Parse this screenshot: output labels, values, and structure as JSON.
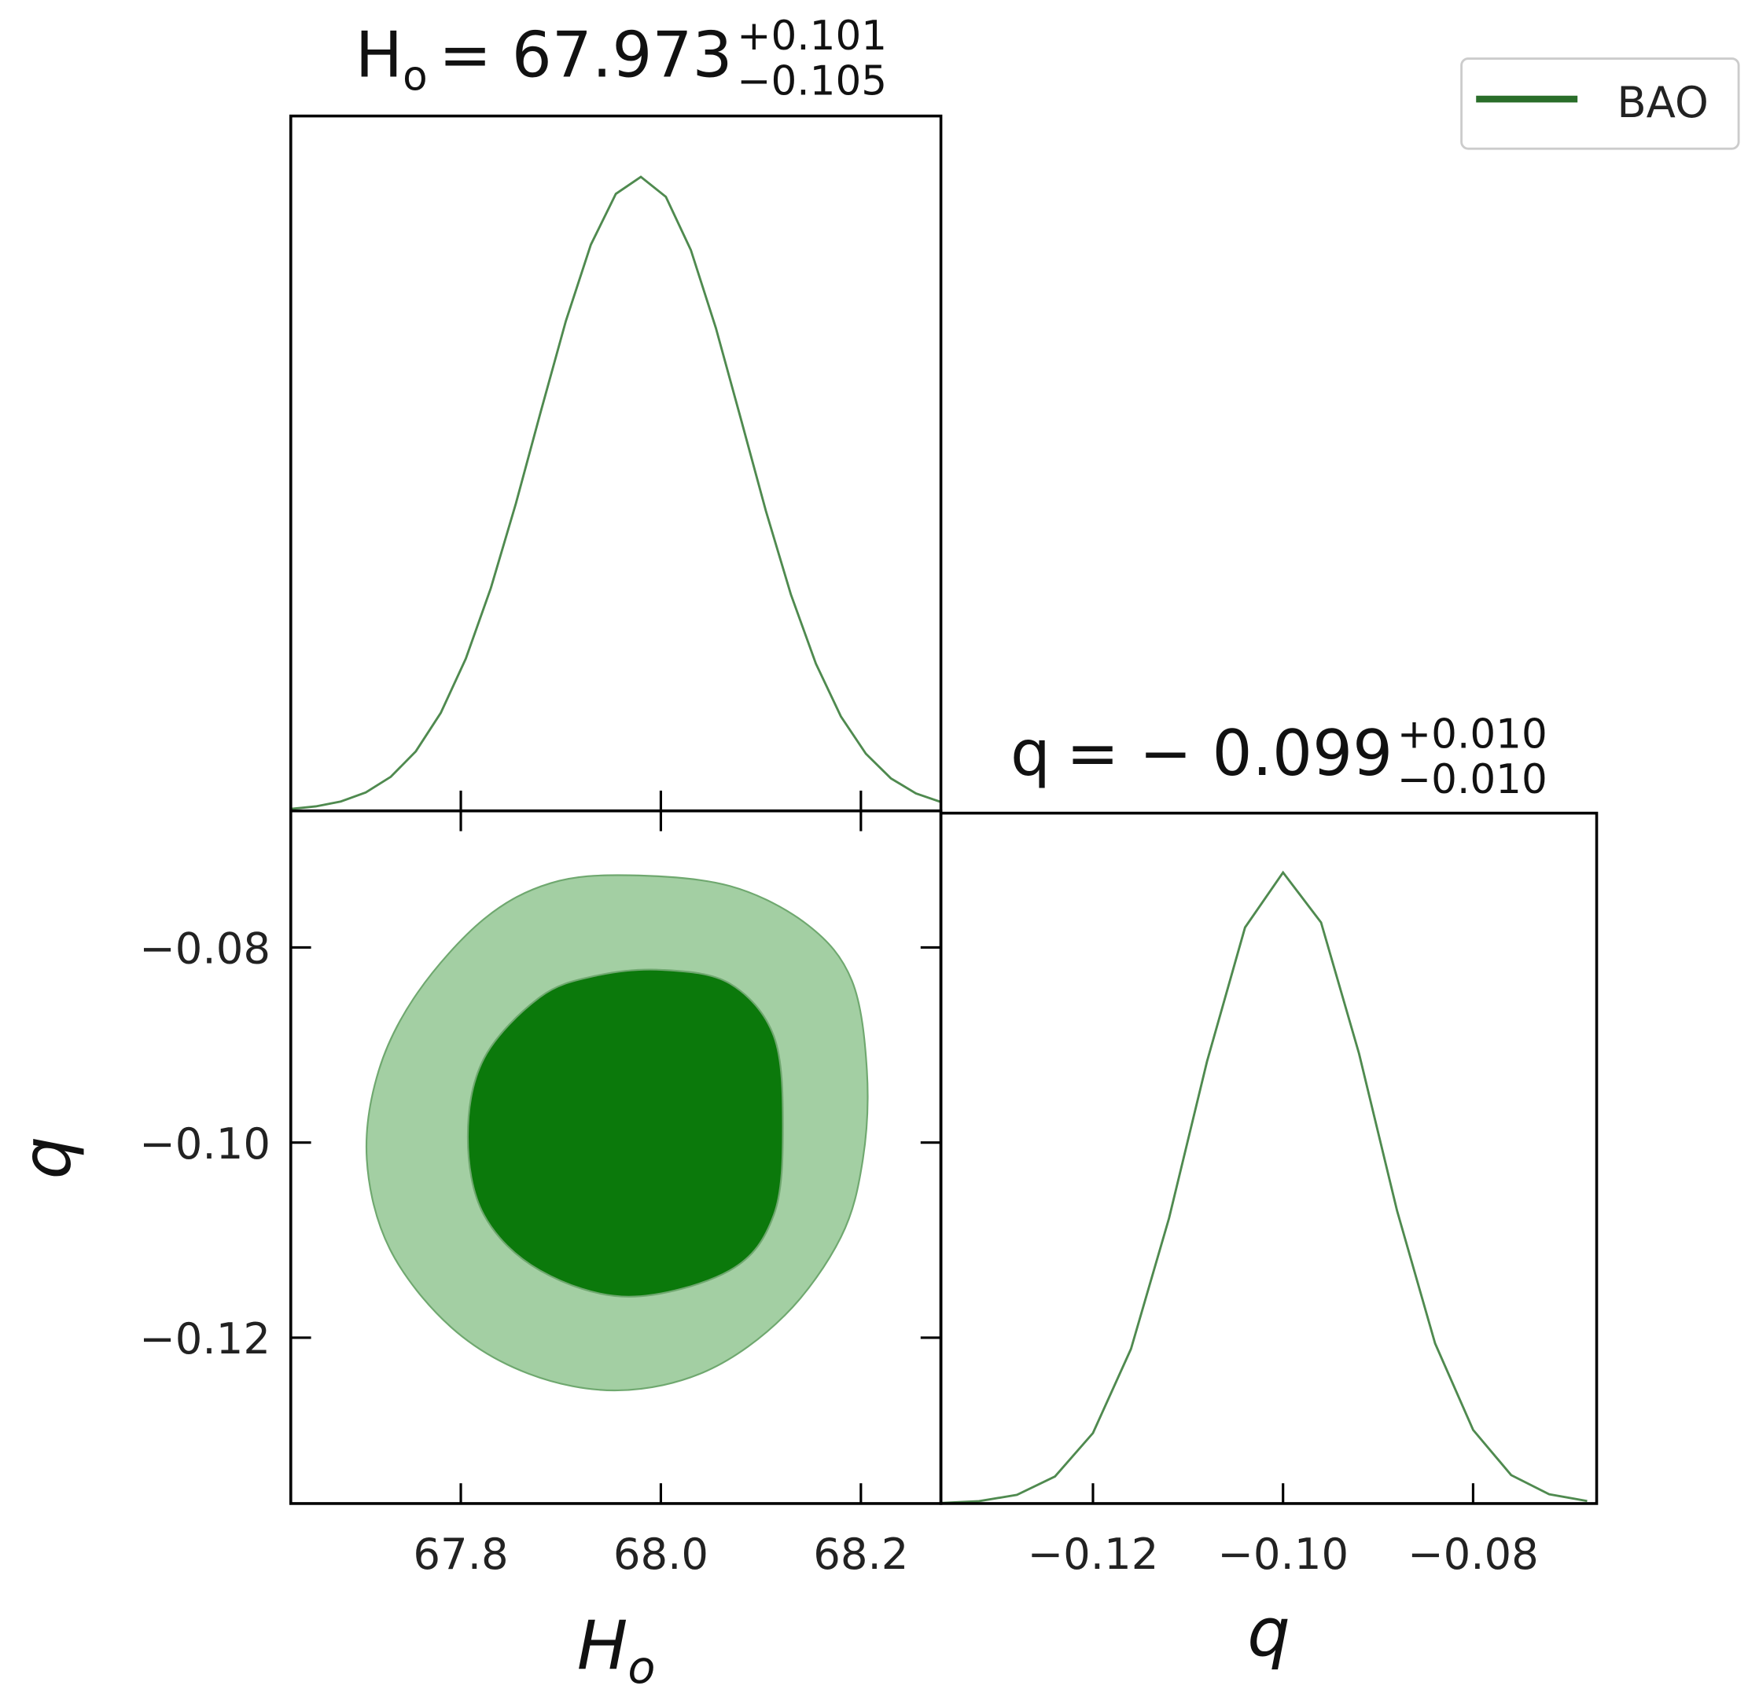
{
  "chart_data": [
    {
      "type": "line",
      "title": {
        "main": "H",
        "main_sub": "o",
        "value": "= 67.973",
        "upper": "+0.101",
        "lower": "−0.105"
      },
      "x": [
        67.63,
        67.655,
        67.68,
        67.705,
        67.73,
        67.755,
        67.78,
        67.805,
        67.83,
        67.855,
        67.88,
        67.905,
        67.93,
        67.955,
        67.98,
        68.005,
        68.03,
        68.055,
        68.08,
        68.105,
        68.13,
        68.155,
        68.18,
        68.205,
        68.23,
        68.255,
        68.28
      ],
      "series": [
        {
          "name": "BAO",
          "color": "#4f8a4f",
          "values": [
            0.0032,
            0.0071,
            0.0148,
            0.0291,
            0.0538,
            0.0939,
            0.1547,
            0.2401,
            0.3513,
            0.4845,
            0.6301,
            0.7725,
            0.893,
            0.9732,
            1.0,
            0.9686,
            0.8846,
            0.7617,
            0.6183,
            0.4732,
            0.3414,
            0.2323,
            0.149,
            0.0901,
            0.0513,
            0.0276,
            0.014
          ]
        }
      ],
      "xlim": [
        67.63,
        68.28
      ],
      "ylim": [
        0,
        1.096
      ],
      "legend": "upper right",
      "legend_color": "#2a6e2a"
    },
    {
      "type": "contour",
      "xlabel": {
        "main": "H",
        "sub": "o"
      },
      "ylabel": "q",
      "series": [
        {
          "color": "#a3cfa3",
          "x": [
            67.968,
            68.069,
            68.147,
            68.191,
            68.206,
            68.202,
            68.18,
            68.124,
            68.046,
            67.957,
            67.868,
            67.79,
            67.729,
            67.706,
            67.718,
            67.757,
            67.823,
            67.89
          ],
          "y": [
            -0.0726,
            -0.0737,
            -0.0777,
            -0.0834,
            -0.0926,
            -0.1017,
            -0.1097,
            -0.1177,
            -0.1234,
            -0.1254,
            -0.1237,
            -0.1189,
            -0.1109,
            -0.1017,
            -0.0926,
            -0.0846,
            -0.0771,
            -0.0734
          ]
        },
        {
          "color": "#0b790b",
          "x": [
            68.002,
            68.069,
            68.113,
            68.122,
            68.113,
            68.069,
            67.968,
            67.879,
            67.823,
            67.807,
            67.823,
            67.879,
            67.935
          ],
          "y": [
            -0.0823,
            -0.0837,
            -0.0891,
            -0.0983,
            -0.1074,
            -0.1131,
            -0.1158,
            -0.1131,
            -0.1074,
            -0.0994,
            -0.0914,
            -0.0851,
            -0.0829
          ]
        }
      ],
      "xlim": [
        67.63,
        68.28
      ],
      "ylim": [
        -0.137,
        -0.066
      ],
      "xticks": [
        67.8,
        {
          "value": 68,
          "label": "68.0"
        },
        68.2
      ],
      "yticks": [
        {
          "value": -0.08,
          "label": "−0.08"
        },
        {
          "value": -0.1,
          "label": "−0.10"
        },
        {
          "value": -0.12,
          "label": "−0.12"
        }
      ]
    },
    {
      "type": "line",
      "title": {
        "main": "q",
        "value": "= − 0.099",
        "upper": "+0.010",
        "lower": "−0.010"
      },
      "xlabel": "q",
      "x": [
        -0.136,
        -0.132,
        -0.128,
        -0.124,
        -0.12,
        -0.116,
        -0.112,
        -0.108,
        -0.104,
        -0.1,
        -0.096,
        -0.092,
        -0.088,
        -0.084,
        -0.08,
        -0.076,
        -0.072,
        -0.068
      ],
      "series": [
        {
          "color": "#4f8a4f",
          "values": [
            0.00085,
            0.0037,
            0.0138,
            0.0428,
            0.1117,
            0.245,
            0.4519,
            0.7005,
            0.9128,
            1.0,
            0.9208,
            0.7128,
            0.4638,
            0.2537,
            0.1167,
            0.0451,
            0.0147,
            0.004
          ]
        }
      ],
      "xlim": [
        -0.136,
        -0.067
      ],
      "ylim": [
        0,
        1.094
      ],
      "xticks": [
        {
          "value": -0.12,
          "label": "−0.12"
        },
        {
          "value": -0.1,
          "label": "−0.10"
        },
        {
          "value": -0.08,
          "label": "−0.08"
        }
      ]
    }
  ]
}
